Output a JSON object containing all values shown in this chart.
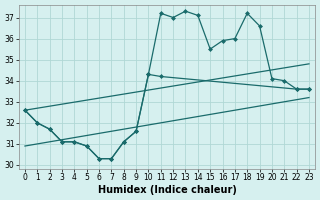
{
  "xlabel": "Humidex (Indice chaleur)",
  "bg_color": "#d6f0ef",
  "grid_color": "#b0d8d5",
  "line_color": "#1a6b6b",
  "xlim": [
    -0.5,
    23.5
  ],
  "ylim": [
    29.8,
    37.6
  ],
  "xticks": [
    0,
    1,
    2,
    3,
    4,
    5,
    6,
    7,
    8,
    9,
    10,
    11,
    12,
    13,
    14,
    15,
    16,
    17,
    18,
    19,
    20,
    21,
    22,
    23
  ],
  "yticks": [
    30,
    31,
    32,
    33,
    34,
    35,
    36,
    37
  ],
  "series": [
    {
      "x": [
        0,
        1,
        2,
        3,
        4,
        5,
        6,
        7,
        8,
        9,
        10,
        11,
        12,
        13,
        14,
        15,
        16,
        17,
        18,
        19,
        20,
        21,
        22,
        23
      ],
      "y": [
        32.6,
        32.0,
        31.7,
        31.1,
        31.1,
        30.9,
        30.3,
        30.3,
        31.1,
        31.6,
        34.3,
        37.2,
        37.0,
        37.3,
        37.1,
        35.5,
        35.9,
        36.0,
        37.2,
        36.6,
        34.1,
        34.0,
        33.6,
        33.6
      ],
      "marker": "D",
      "markersize": 2.0,
      "linewidth": 0.9
    },
    {
      "x": [
        0,
        1,
        2,
        3,
        4,
        5,
        6,
        7,
        8,
        9,
        10,
        11,
        22,
        23
      ],
      "y": [
        32.6,
        32.0,
        31.7,
        31.1,
        31.1,
        30.9,
        30.3,
        30.3,
        31.1,
        31.6,
        34.3,
        34.2,
        33.6,
        33.6
      ],
      "marker": "D",
      "markersize": 2.0,
      "linewidth": 0.9
    },
    {
      "x": [
        0,
        23
      ],
      "y": [
        32.6,
        34.8
      ],
      "marker": null,
      "markersize": 0,
      "linewidth": 0.9
    },
    {
      "x": [
        0,
        23
      ],
      "y": [
        30.9,
        33.2
      ],
      "marker": null,
      "markersize": 0,
      "linewidth": 0.9
    }
  ]
}
